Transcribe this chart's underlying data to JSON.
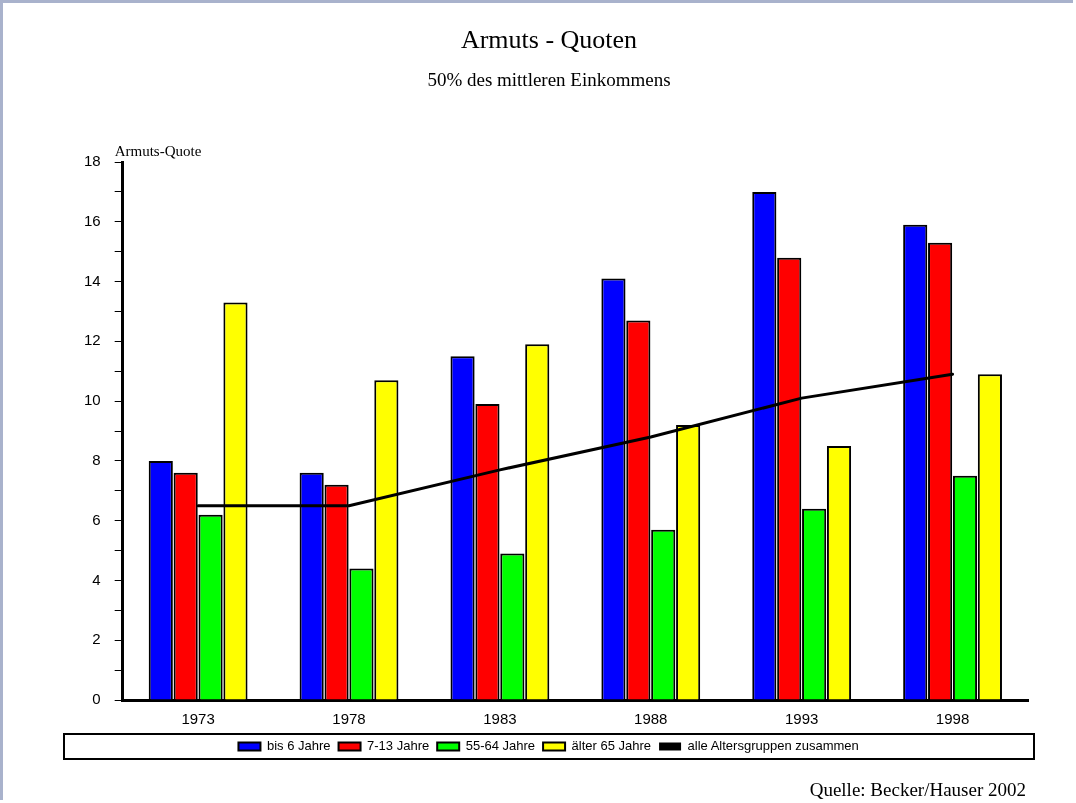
{
  "chart_data": {
    "type": "bar",
    "title": "Armuts - Quoten",
    "subtitle": "50% des mittleren Einkommens",
    "ylabel": "Armuts-Quote",
    "categories": [
      "1973",
      "1978",
      "1983",
      "1988",
      "1993",
      "1998"
    ],
    "series": [
      {
        "name": "bis 6 Jahre",
        "color": "#0000ff",
        "values": [
          8.0,
          7.6,
          11.5,
          14.1,
          17.0,
          15.9
        ]
      },
      {
        "name": "7-13 Jahre",
        "color": "#ff0000",
        "values": [
          7.6,
          7.2,
          9.9,
          12.7,
          14.8,
          15.3
        ]
      },
      {
        "name": "55-64 Jahre",
        "color": "#00ff00",
        "values": [
          6.2,
          4.4,
          4.9,
          5.7,
          6.4,
          7.5
        ]
      },
      {
        "name": "älter 65 Jahre",
        "color": "#ffff00",
        "values": [
          13.3,
          10.7,
          11.9,
          9.2,
          8.5,
          10.9
        ]
      },
      {
        "name": "alle Altersgruppen zusammen",
        "type": "line",
        "color": "#000000",
        "values": [
          6.5,
          6.5,
          7.7,
          8.8,
          10.1,
          10.9
        ]
      }
    ],
    "ylim": [
      0,
      18
    ],
    "yticks": [
      0,
      {
        "value": 1,
        "label": null
      },
      2,
      {
        "value": 3,
        "label": null
      },
      4,
      {
        "value": 5,
        "label": null
      },
      6,
      {
        "value": 7,
        "label": null
      },
      8,
      {
        "value": 9,
        "label": null
      },
      10,
      {
        "value": 11,
        "label": null
      },
      12,
      {
        "value": 13,
        "label": null
      },
      14,
      {
        "value": 15,
        "label": null
      },
      16,
      {
        "value": 17,
        "label": null
      },
      18
    ],
    "grid": false,
    "legend": "bottom",
    "marker": "none",
    "line_style": "solid",
    "annotations": [
      "Quelle: Becker/Hauser 2002"
    ]
  }
}
